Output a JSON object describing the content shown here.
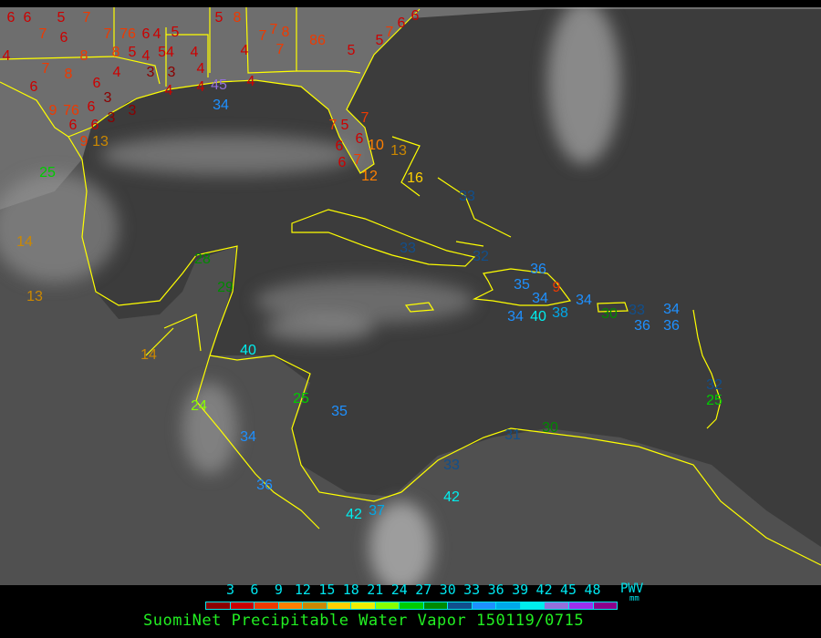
{
  "caption": "SuomiNet Precipitable Water Vapor 150119/0715",
  "legend": {
    "unit_line1": "PWV",
    "unit_line2": "mm",
    "ticks": [
      "3",
      "6",
      "9",
      "12",
      "15",
      "18",
      "21",
      "24",
      "27",
      "30",
      "33",
      "36",
      "39",
      "42",
      "45",
      "48"
    ],
    "colors": [
      "#8b0000",
      "#cc0000",
      "#ee3a00",
      "#ff7f00",
      "#cc8800",
      "#ffd000",
      "#eeee00",
      "#88ff00",
      "#00cc00",
      "#008a00",
      "#114f8c",
      "#1e90ff",
      "#00a8e8",
      "#00eeee",
      "#9370db",
      "#9b30ee",
      "#8b008b"
    ]
  },
  "map": {
    "background_ocean": "#3c3c3c",
    "background_land": "#6e6e6e",
    "coastline_color": "#ffff00",
    "stations": [
      {
        "v": "6"
      },
      {
        "v": "6"
      },
      {
        "v": "5"
      },
      {
        "v": "7"
      },
      {
        "v": "6"
      },
      {
        "v": "7"
      },
      {
        "v": "7"
      },
      {
        "v": "8"
      },
      {
        "v": "76"
      },
      {
        "v": "5"
      },
      {
        "v": "8"
      },
      {
        "v": "4"
      },
      {
        "v": "7"
      },
      {
        "v": "8"
      },
      {
        "v": "4"
      },
      {
        "v": "6"
      },
      {
        "v": "6"
      },
      {
        "v": "3"
      },
      {
        "v": "6"
      },
      {
        "v": "4"
      },
      {
        "v": "5"
      },
      {
        "v": "54"
      },
      {
        "v": "4"
      },
      {
        "v": "3"
      },
      {
        "v": "3"
      },
      {
        "v": "4"
      },
      {
        "v": "4"
      },
      {
        "v": "4"
      },
      {
        "v": "4"
      },
      {
        "v": "45"
      },
      {
        "v": "34"
      },
      {
        "v": "5"
      },
      {
        "v": "8"
      },
      {
        "v": "4"
      },
      {
        "v": "4"
      },
      {
        "v": "9"
      },
      {
        "v": "76"
      },
      {
        "v": "6"
      },
      {
        "v": "3"
      },
      {
        "v": "3"
      },
      {
        "v": "6"
      },
      {
        "v": "6"
      },
      {
        "v": "9"
      },
      {
        "v": "13"
      },
      {
        "v": "7"
      },
      {
        "v": "7"
      },
      {
        "v": "8"
      },
      {
        "v": "7"
      },
      {
        "v": "86"
      },
      {
        "v": "5"
      },
      {
        "v": "5"
      },
      {
        "v": "7"
      },
      {
        "v": "6"
      },
      {
        "v": "6"
      },
      {
        "v": "7"
      },
      {
        "v": "5"
      },
      {
        "v": "7"
      },
      {
        "v": "6"
      },
      {
        "v": "10"
      },
      {
        "v": "13"
      },
      {
        "v": "6"
      },
      {
        "v": "6"
      },
      {
        "v": "7"
      },
      {
        "v": "12"
      },
      {
        "v": "16"
      },
      {
        "v": "25"
      },
      {
        "v": "14"
      },
      {
        "v": "13"
      },
      {
        "v": "28"
      },
      {
        "v": "29"
      },
      {
        "v": "14"
      },
      {
        "v": "33"
      },
      {
        "v": "33"
      },
      {
        "v": "32"
      },
      {
        "v": "35"
      },
      {
        "v": "36"
      },
      {
        "v": "34"
      },
      {
        "v": "9"
      },
      {
        "v": "38"
      },
      {
        "v": "34"
      },
      {
        "v": "34"
      },
      {
        "v": "40"
      },
      {
        "v": "30"
      },
      {
        "v": "33"
      },
      {
        "v": "36"
      },
      {
        "v": "34"
      },
      {
        "v": "36"
      },
      {
        "v": "32"
      },
      {
        "v": "25"
      },
      {
        "v": "30"
      },
      {
        "v": "31"
      },
      {
        "v": "33"
      },
      {
        "v": "42"
      },
      {
        "v": "37"
      },
      {
        "v": "42"
      },
      {
        "v": "36"
      },
      {
        "v": "34"
      },
      {
        "v": "24"
      },
      {
        "v": "25"
      },
      {
        "v": "35"
      },
      {
        "v": "40"
      }
    ]
  }
}
